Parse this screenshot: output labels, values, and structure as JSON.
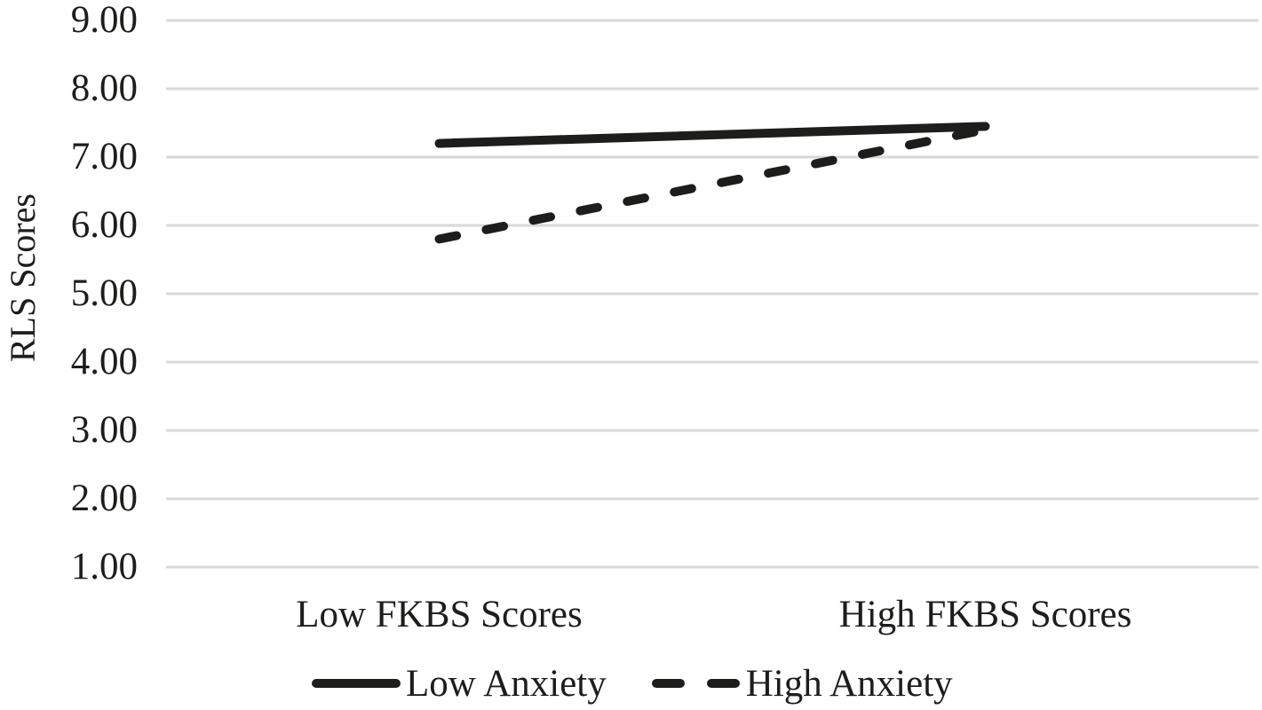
{
  "chart_data": {
    "type": "line",
    "title": "",
    "categories": [
      "Low FKBS Scores",
      "High FKBS Scores"
    ],
    "series": [
      {
        "name": "Low Anxiety",
        "style": "solid",
        "values": [
          7.2,
          7.45
        ]
      },
      {
        "name": "High Anxiety",
        "style": "dashed",
        "values": [
          5.8,
          7.4
        ]
      }
    ],
    "xlabel": "",
    "ylabel": "RLS Scores",
    "yticks": [
      "9.00",
      "8.00",
      "7.00",
      "6.00",
      "5.00",
      "4.00",
      "3.00",
      "2.00",
      "1.00"
    ],
    "ylim": [
      1,
      9
    ],
    "grid": "horizontal",
    "legend_position": "bottom",
    "colors": {
      "line": "#1d1d1b",
      "grid": "#d9d9d9",
      "text": "#1d1d1b",
      "background": "#ffffff"
    }
  }
}
